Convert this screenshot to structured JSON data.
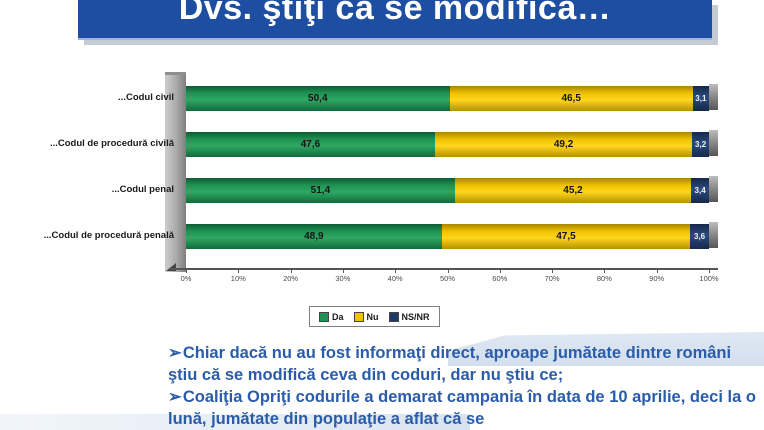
{
  "slide": {
    "title": "Dvs. ştiţi că se modifică…",
    "title_bar_color": "#1d4ea2",
    "note_text_color": "#2a5caa"
  },
  "chart_data": {
    "type": "bar",
    "orientation": "horizontal",
    "stacked": true,
    "style": "3d-cylinder",
    "categories": [
      "...Codul civil",
      "...Codul de procedură civilă",
      "...Codul penal",
      "...Codul de procedură penală"
    ],
    "series": [
      {
        "name": "Da",
        "color": "#1f9152",
        "values": [
          50.4,
          47.6,
          51.4,
          48.9
        ]
      },
      {
        "name": "Nu",
        "color": "#f0c300",
        "values": [
          46.5,
          49.2,
          45.2,
          47.5
        ]
      },
      {
        "name": "NS/NR",
        "color": "#1f3a66",
        "values": [
          3.1,
          3.2,
          3.4,
          3.6
        ]
      }
    ],
    "value_decimal_separator": ",",
    "xlim": [
      0,
      100
    ],
    "x_tick_labels": [
      "0%",
      "10%",
      "20%",
      "30%",
      "40%",
      "50%",
      "60%",
      "70%",
      "80%",
      "90%",
      "100%"
    ],
    "grid": false,
    "legend_position": "bottom",
    "plot_background": "#ffffff"
  },
  "notes": {
    "bullet_glyph": "➢",
    "items": [
      "Chiar dacă nu au fost informaţi direct, aproape jumătate dintre români ştiu că se modifică ceva din coduri, dar nu ştiu ce;",
      "Coaliţia Opriţi codurile a demarat campania în data de 10 aprilie, deci la o lună, jumătate din populaţie a aflat că se"
    ]
  }
}
